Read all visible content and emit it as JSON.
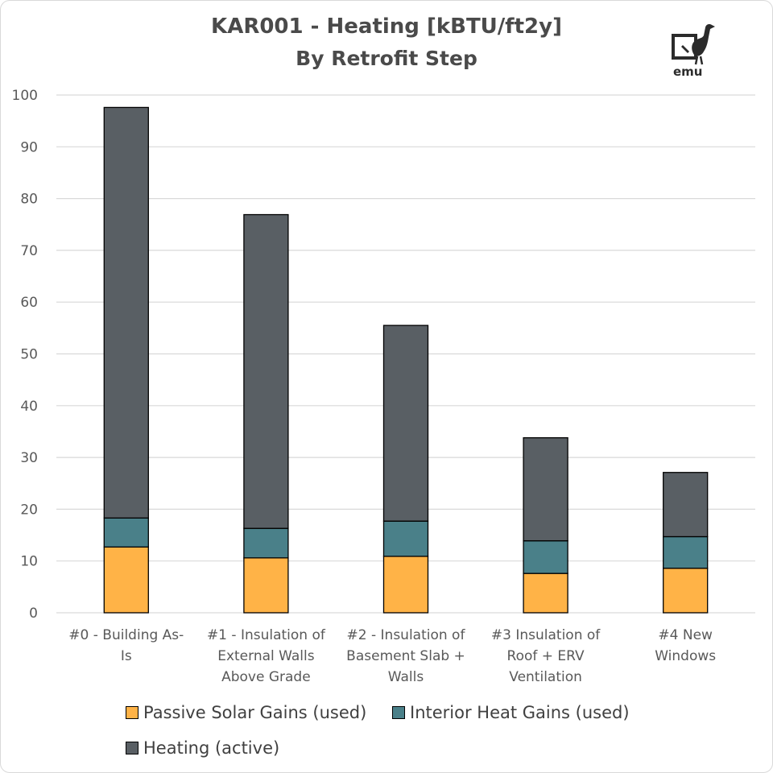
{
  "title_line1": "KAR001 - Heating [kBTU/ft2y]",
  "title_line2": "By Retrofit Step",
  "logo_text": "emu",
  "chart_data": {
    "type": "bar",
    "stacked": true,
    "title": "KAR001 - Heating [kBTU/ft2y] By Retrofit Step",
    "categories": [
      [
        "#0 - Building As-",
        "Is"
      ],
      [
        "#1 - Insulation of",
        "External Walls",
        "Above Grade"
      ],
      [
        "#2 - Insulation of",
        "Basement Slab +",
        "Walls"
      ],
      [
        "#3 Insulation of",
        "Roof + ERV",
        "Ventilation"
      ],
      [
        "#4 New",
        "Windows"
      ]
    ],
    "series": [
      {
        "name": "Passive Solar Gains (used)",
        "color": "#FFB347",
        "values": [
          12.7,
          10.6,
          10.9,
          7.6,
          8.6
        ]
      },
      {
        "name": "Interior Heat Gains (used)",
        "color": "#4A8089",
        "values": [
          5.6,
          5.7,
          6.8,
          6.3,
          6.1
        ]
      },
      {
        "name": "Heating (active)",
        "color": "#595F64",
        "values": [
          79.3,
          60.6,
          37.8,
          19.9,
          12.4
        ]
      }
    ],
    "ylim": [
      0,
      100
    ],
    "yticks": [
      0,
      10,
      20,
      30,
      40,
      50,
      60,
      70,
      80,
      90,
      100
    ],
    "grid": true,
    "legend_position": "bottom"
  }
}
